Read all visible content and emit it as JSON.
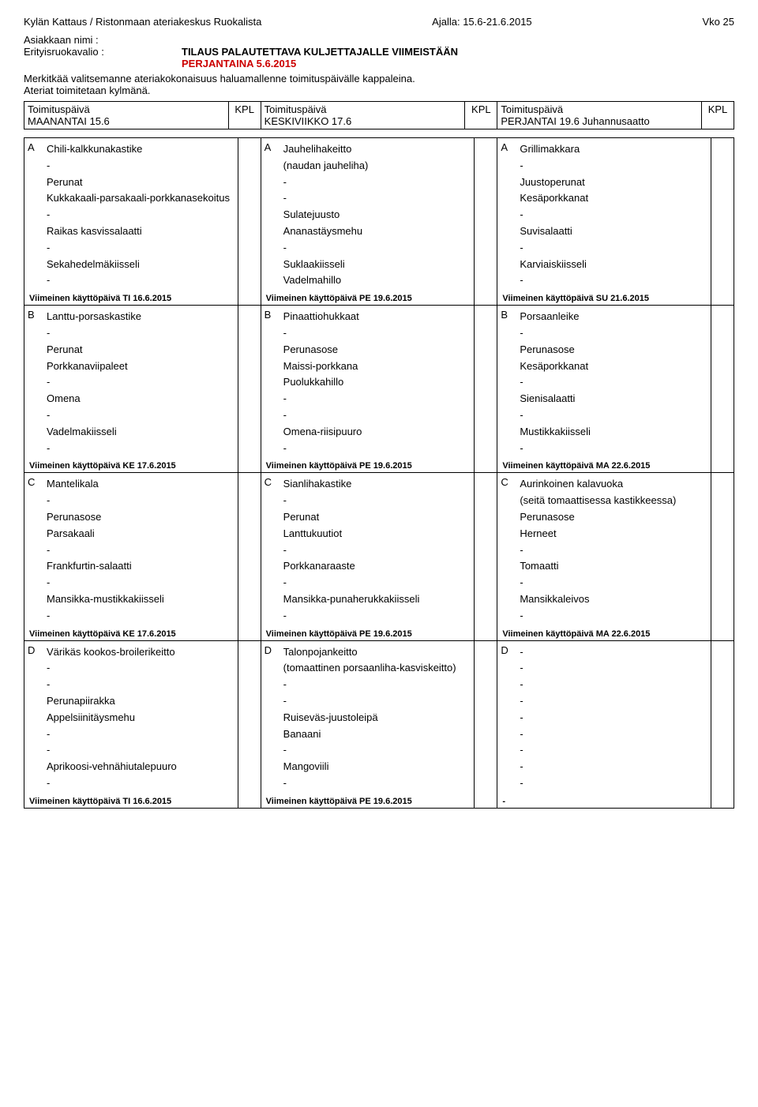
{
  "header": {
    "left": "Kylän Kattaus / Ristonmaan ateriakeskus Ruokalista",
    "center": "Ajalla: 15.6-21.6.2015",
    "right": "Vko 25",
    "customer_label": "Asiakkaan nimi :",
    "diet_label": "Erityisruokavalio :",
    "order_return_1": "TILAUS PALAUTETTAVA KULJETTAJALLE VIIMEISTÄÄN",
    "order_return_2": "PERJANTAINA 5.6.2015",
    "mark_note": "Merkitkää valitsemanne ateriakokonaisuus haluamallenne toimituspäivälle kappaleina.",
    "cold_note": "Ateriat toimitetaan kylmänä.",
    "kpl": "KPL"
  },
  "days": [
    {
      "label": "Toimituspäivä",
      "name": "MAANANTAI 15.6"
    },
    {
      "label": "Toimituspäivä",
      "name": "KESKIVIIKKO 17.6"
    },
    {
      "label": "Toimituspäivä",
      "name": "PERJANTAI 19.6 Juhannusaatto"
    }
  ],
  "menu": [
    [
      {
        "letter": "A",
        "items": [
          "Chili-kalkkunakastike",
          "-",
          "Perunat",
          "Kukkakaali-parsakaali-porkkanasekoitus",
          "-",
          "Raikas kasvissalaatti",
          "-",
          "Sekahedelmäkiisseli",
          "-"
        ],
        "use_by": "Viimeinen käyttöpäivä TI 16.6.2015"
      },
      {
        "letter": "A",
        "items": [
          "Jauhelihakeitto",
          "(naudan jauheliha)",
          "-",
          "-",
          "Sulatejuusto",
          "Ananastäysmehu",
          "-",
          "Suklaakiisseli",
          "Vadelmahillo"
        ],
        "use_by": "Viimeinen käyttöpäivä PE 19.6.2015"
      },
      {
        "letter": "A",
        "items": [
          "Grillimakkara",
          "-",
          "Juustoperunat",
          "Kesäporkkanat",
          "-",
          "Suvisalaatti",
          "-",
          "Karviaiskiisseli",
          "-"
        ],
        "use_by": "Viimeinen käyttöpäivä SU 21.6.2015"
      }
    ],
    [
      {
        "letter": "B",
        "items": [
          "Lanttu-porsaskastike",
          "-",
          "Perunat",
          "Porkkanaviipaleet",
          "-",
          "Omena",
          "-",
          "Vadelmakiisseli",
          "-"
        ],
        "use_by": "Viimeinen käyttöpäivä KE 17.6.2015"
      },
      {
        "letter": "B",
        "items": [
          "Pinaattiohukkaat",
          "-",
          "Perunasose",
          "Maissi-porkkana",
          "Puolukkahillo",
          "-",
          "-",
          "Omena-riisipuuro",
          "-"
        ],
        "use_by": "Viimeinen käyttöpäivä PE 19.6.2015"
      },
      {
        "letter": "B",
        "items": [
          "Porsaanleike",
          "-",
          "Perunasose",
          "Kesäporkkanat",
          "-",
          "Sienisalaatti",
          "-",
          "Mustikkakiisseli",
          "-"
        ],
        "use_by": "Viimeinen käyttöpäivä MA 22.6.2015"
      }
    ],
    [
      {
        "letter": "C",
        "items": [
          "Mantelikala",
          "-",
          "Perunasose",
          "Parsakaali",
          "-",
          "Frankfurtin-salaatti",
          "-",
          "Mansikka-mustikkakiisseli",
          "-"
        ],
        "use_by": "Viimeinen käyttöpäivä KE 17.6.2015"
      },
      {
        "letter": "C",
        "items": [
          "Sianlihakastike",
          "-",
          "Perunat",
          "Lanttukuutiot",
          "-",
          "Porkkanaraaste",
          "-",
          "Mansikka-punaherukkakiisseli",
          "-"
        ],
        "use_by": "Viimeinen käyttöpäivä PE 19.6.2015"
      },
      {
        "letter": "C",
        "items": [
          "Aurinkoinen kalavuoka",
          "(seitä tomaattisessa kastikkeessa)",
          "Perunasose",
          "Herneet",
          "-",
          "Tomaatti",
          "-",
          "Mansikkaleivos",
          "-"
        ],
        "use_by": "Viimeinen käyttöpäivä MA 22.6.2015"
      }
    ],
    [
      {
        "letter": "D",
        "items": [
          "Värikäs kookos-broilerikeitto",
          "-",
          "-",
          "Perunapiirakka",
          "Appelsiinitäysmehu",
          "-",
          "-",
          "Aprikoosi-vehnähiutalepuuro",
          "-"
        ],
        "use_by": "Viimeinen käyttöpäivä TI 16.6.2015"
      },
      {
        "letter": "D",
        "items": [
          "Talonpojankeitto",
          "(tomaattinen porsaanliha-kasviskeitto)",
          "-",
          "-",
          "Ruiseväs-juustoleipä",
          "Banaani",
          "-",
          "Mangoviili",
          "-"
        ],
        "use_by": "Viimeinen käyttöpäivä PE 19.6.2015"
      },
      {
        "letter": "D",
        "items": [
          "-",
          "-",
          "-",
          "-",
          "-",
          "-",
          "-",
          "-",
          "-"
        ],
        "use_by": "-"
      }
    ]
  ]
}
